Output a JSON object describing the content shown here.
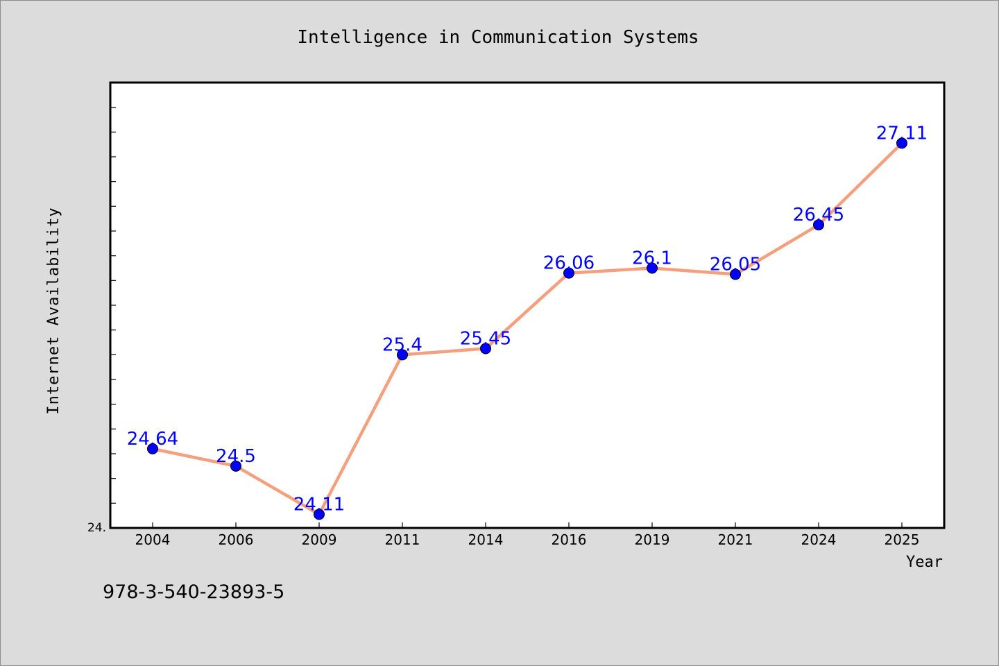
{
  "chart_data": {
    "type": "line",
    "title": "Intelligence in Communication Systems",
    "xlabel": "Year",
    "ylabel": "Internet Availability",
    "categories": [
      "2004",
      "2006",
      "2009",
      "2011",
      "2014",
      "2016",
      "2019",
      "2021",
      "2024",
      "2025"
    ],
    "series": [
      {
        "values": [
          24.64,
          24.5,
          24.11,
          25.4,
          25.45,
          26.06,
          26.1,
          26.05,
          26.45,
          27.11
        ],
        "data_labels": [
          "24.64",
          "24.5",
          "24.11",
          "25.4",
          "25.45",
          "26.06",
          "26.1",
          "26.05",
          "26.45",
          "27.11"
        ]
      }
    ],
    "ylim": [
      24.0,
      27.6
    ],
    "y_tick_label": "24.",
    "grid": false,
    "line_color": "#f4a07e",
    "marker_color": "#0000ff",
    "label_color": "#0000ff"
  },
  "footer_text": "978-3-540-23893-5"
}
